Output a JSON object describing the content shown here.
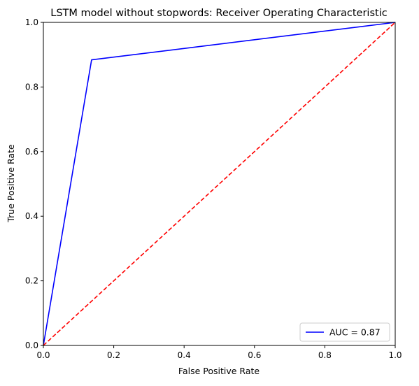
{
  "chart_data": {
    "type": "line",
    "title": "LSTM model without stopwords: Receiver Operating Characteristic",
    "xlabel": "False Positive Rate",
    "ylabel": "True Positive Rate",
    "xlim": [
      0,
      1
    ],
    "ylim": [
      0,
      1
    ],
    "xticks": [
      "0.0",
      "0.2",
      "0.4",
      "0.6",
      "0.8",
      "1.0"
    ],
    "yticks": [
      "0.0",
      "0.2",
      "0.4",
      "0.6",
      "0.8",
      "1.0"
    ],
    "grid": false,
    "legend_position": "lower right",
    "series": [
      {
        "name": "AUC = 0.87",
        "style": "solid",
        "color": "#0000ff",
        "x": [
          0.0,
          0.137,
          1.0
        ],
        "y": [
          0.0,
          0.884,
          1.0
        ]
      },
      {
        "style": "dashed",
        "color": "#ff0000",
        "x": [
          0.0,
          1.0
        ],
        "y": [
          0.0,
          1.0
        ]
      }
    ]
  }
}
